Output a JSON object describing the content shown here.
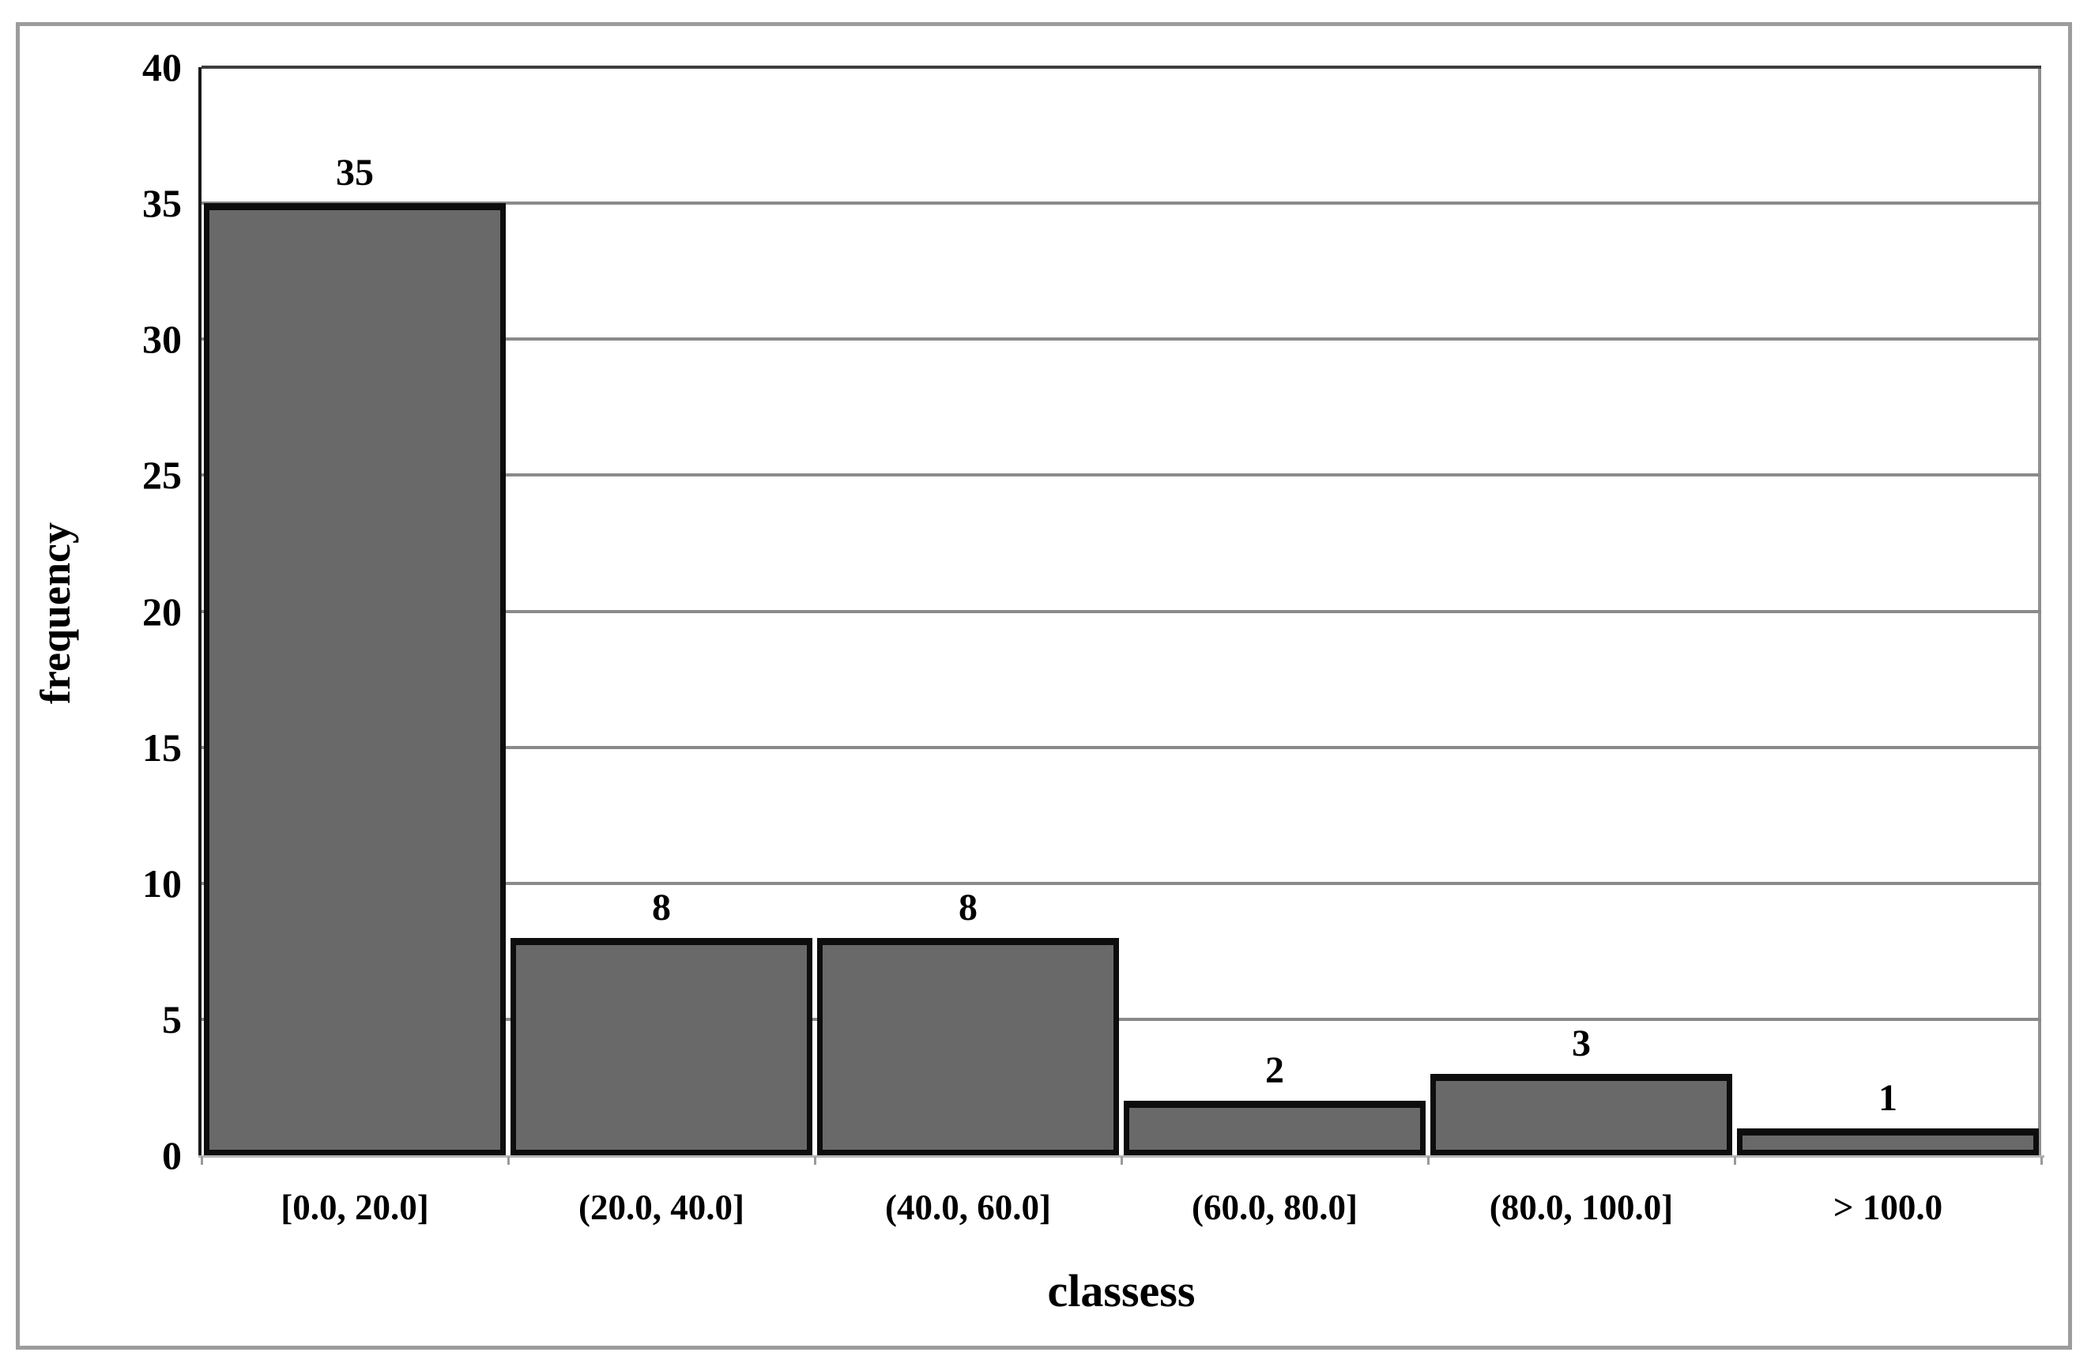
{
  "chart_data": {
    "type": "bar",
    "subtype": "histogram",
    "title": "",
    "xlabel": "classess",
    "ylabel": "frequency",
    "categories": [
      "[0.0, 20.0]",
      "(20.0, 40.0]",
      "(40.0, 60.0]",
      "(60.0, 80.0]",
      "(80.0, 100.0]",
      "> 100.0"
    ],
    "values": [
      35,
      8,
      8,
      2,
      3,
      1
    ],
    "bar_value_labels": [
      "35",
      "8",
      "8",
      "2",
      "3",
      "1"
    ],
    "ylim": [
      0,
      40
    ],
    "ytick_interval": 5,
    "yticks": [
      40,
      35,
      30,
      25,
      20,
      15,
      10,
      5,
      0
    ],
    "grid": "horizontal-only",
    "legend": "none",
    "colors": {
      "bar_fill": "#696969",
      "bar_border": "#0d0d0d",
      "gridline": "#8a8a8a",
      "top_gridline": "#3d3d3d",
      "left_axis": "#1a1a1a",
      "right_border": "#919191",
      "bottom_axis": "#b5b5b5",
      "outer_frame": "#9c9c9c",
      "text": "#000000",
      "background": "#ffffff"
    }
  }
}
